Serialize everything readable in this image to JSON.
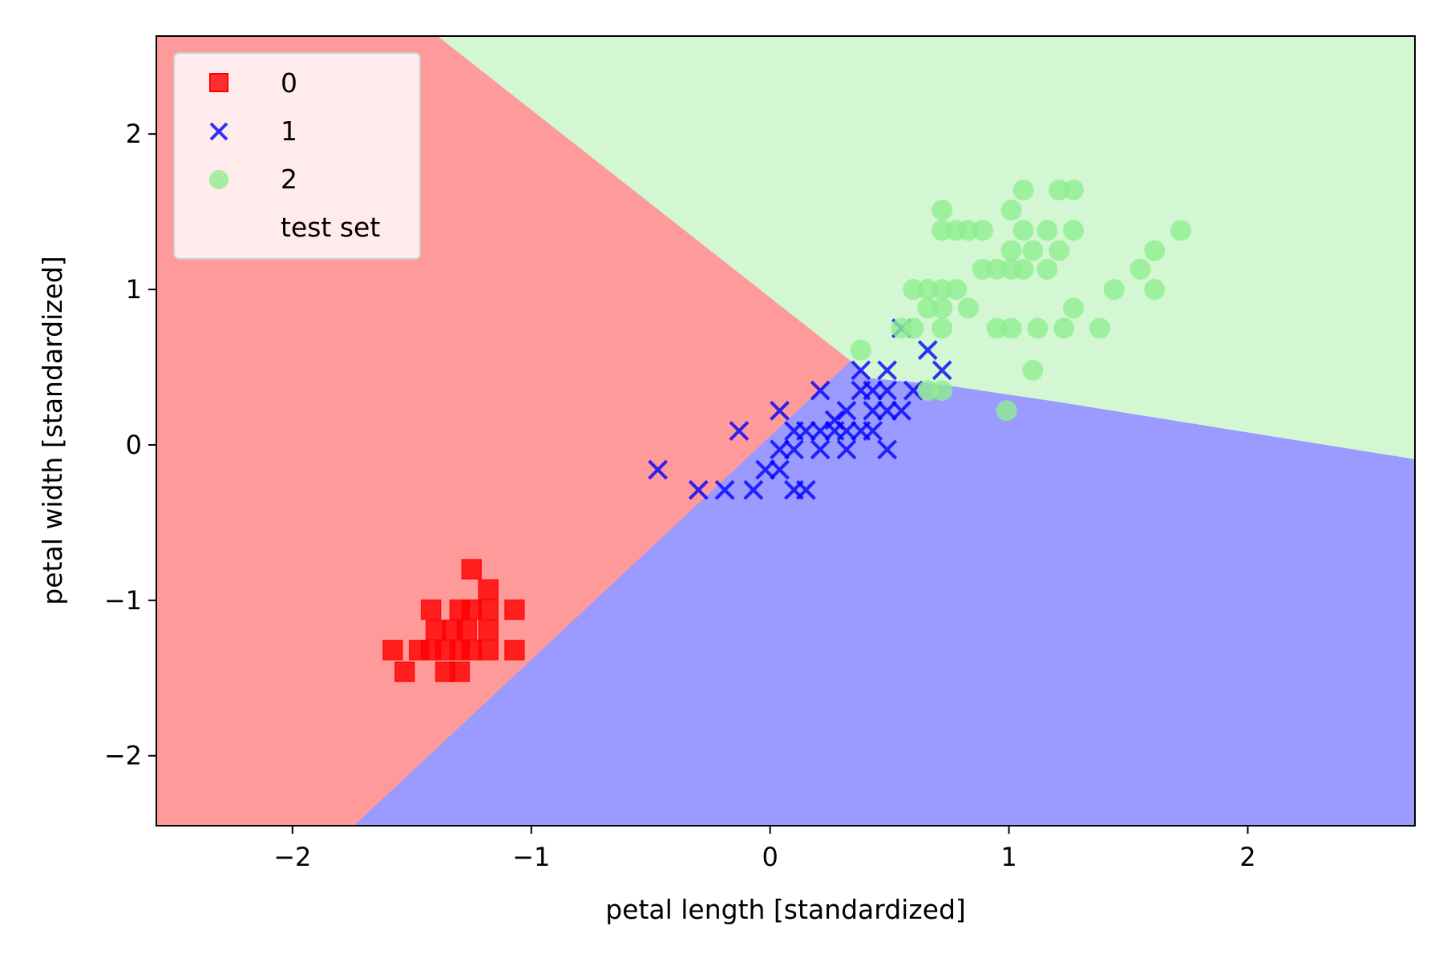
{
  "chart_data": {
    "type": "scatter",
    "title": "",
    "xlabel": "petal length [standardized]",
    "ylabel": "petal width [standardized]",
    "xlim": [
      -2.57,
      2.7
    ],
    "ylim": [
      -2.45,
      2.63
    ],
    "xticks": [
      -2,
      -1,
      0,
      1,
      2
    ],
    "yticks": [
      -2,
      -1,
      0,
      1,
      2
    ],
    "xtick_labels": [
      "−2",
      "−1",
      "0",
      "1",
      "2"
    ],
    "ytick_labels": [
      "−2",
      "−1",
      "0",
      "1",
      "2"
    ],
    "grid": false,
    "legend_position": "top-left",
    "legend": [
      {
        "label": "0",
        "marker": "square",
        "color": "#ff0000"
      },
      {
        "label": "1",
        "marker": "x",
        "color": "#0000ff"
      },
      {
        "label": "2",
        "marker": "circle",
        "color": "#90ee90"
      },
      {
        "label": "test set",
        "marker": "none",
        "color": "#000000"
      }
    ],
    "decision_regions": [
      {
        "class": "0",
        "color": "#ff9a9a",
        "polygon": [
          [
            -2.57,
            2.63
          ],
          [
            -1.39,
            2.63
          ],
          [
            0.34,
            0.54
          ],
          [
            -1.74,
            -2.45
          ],
          [
            -2.57,
            -2.45
          ]
        ]
      },
      {
        "class": "1",
        "color": "#9a9aff",
        "polygon": [
          [
            -1.74,
            -2.45
          ],
          [
            0.34,
            0.54
          ],
          [
            0.42,
            0.43
          ],
          [
            0.72,
            0.39
          ],
          [
            1.2,
            0.28
          ],
          [
            2.7,
            -0.09
          ],
          [
            2.7,
            -2.45
          ]
        ]
      },
      {
        "class": "2",
        "color": "#d2f7d2",
        "polygon": [
          [
            -1.39,
            2.63
          ],
          [
            2.7,
            2.63
          ],
          [
            2.7,
            -0.09
          ],
          [
            1.2,
            0.28
          ],
          [
            0.72,
            0.39
          ],
          [
            0.42,
            0.43
          ],
          [
            0.34,
            0.54
          ]
        ]
      }
    ],
    "series": [
      {
        "name": "0",
        "marker": "square",
        "color": "#ff0000",
        "points": [
          [
            -1.25,
            -0.8
          ],
          [
            -1.18,
            -0.93
          ],
          [
            -1.42,
            -1.06
          ],
          [
            -1.3,
            -1.06
          ],
          [
            -1.25,
            -1.06
          ],
          [
            -1.18,
            -1.06
          ],
          [
            -1.07,
            -1.06
          ],
          [
            -1.4,
            -1.19
          ],
          [
            -1.33,
            -1.19
          ],
          [
            -1.27,
            -1.19
          ],
          [
            -1.18,
            -1.19
          ],
          [
            -1.58,
            -1.32
          ],
          [
            -1.47,
            -1.32
          ],
          [
            -1.42,
            -1.32
          ],
          [
            -1.36,
            -1.32
          ],
          [
            -1.3,
            -1.32
          ],
          [
            -1.25,
            -1.32
          ],
          [
            -1.18,
            -1.32
          ],
          [
            -1.07,
            -1.32
          ],
          [
            -1.53,
            -1.46
          ],
          [
            -1.36,
            -1.46
          ],
          [
            -1.3,
            -1.46
          ]
        ]
      },
      {
        "name": "1",
        "marker": "x",
        "color": "#0000ff",
        "points": [
          [
            -0.47,
            -0.16
          ],
          [
            -0.3,
            -0.29
          ],
          [
            -0.19,
            -0.29
          ],
          [
            -0.07,
            -0.29
          ],
          [
            0.1,
            -0.29
          ],
          [
            0.15,
            -0.29
          ],
          [
            -0.13,
            0.09
          ],
          [
            0.04,
            0.22
          ],
          [
            0.21,
            0.35
          ],
          [
            -0.02,
            -0.16
          ],
          [
            0.04,
            -0.16
          ],
          [
            0.04,
            -0.03
          ],
          [
            0.1,
            -0.03
          ],
          [
            0.21,
            -0.03
          ],
          [
            0.32,
            -0.03
          ],
          [
            0.49,
            -0.03
          ],
          [
            0.1,
            0.09
          ],
          [
            0.15,
            0.09
          ],
          [
            0.21,
            0.09
          ],
          [
            0.27,
            0.09
          ],
          [
            0.32,
            0.09
          ],
          [
            0.38,
            0.09
          ],
          [
            0.43,
            0.09
          ],
          [
            0.27,
            0.16
          ],
          [
            0.32,
            0.22
          ],
          [
            0.43,
            0.22
          ],
          [
            0.49,
            0.22
          ],
          [
            0.55,
            0.22
          ],
          [
            0.38,
            0.35
          ],
          [
            0.43,
            0.35
          ],
          [
            0.49,
            0.35
          ],
          [
            0.6,
            0.35
          ],
          [
            0.38,
            0.48
          ],
          [
            0.49,
            0.48
          ],
          [
            0.72,
            0.48
          ],
          [
            0.66,
            0.61
          ],
          [
            0.55,
            0.75
          ]
        ]
      },
      {
        "name": "2",
        "marker": "circle",
        "color": "#90ee90",
        "points": [
          [
            0.38,
            0.61
          ],
          [
            0.55,
            0.75
          ],
          [
            0.6,
            0.75
          ],
          [
            0.72,
            0.75
          ],
          [
            0.95,
            0.75
          ],
          [
            1.01,
            0.75
          ],
          [
            1.12,
            0.75
          ],
          [
            1.23,
            0.75
          ],
          [
            1.38,
            0.75
          ],
          [
            0.66,
            0.88
          ],
          [
            0.72,
            0.88
          ],
          [
            0.83,
            0.88
          ],
          [
            1.27,
            0.88
          ],
          [
            0.6,
            1.0
          ],
          [
            0.66,
            1.0
          ],
          [
            0.72,
            1.0
          ],
          [
            0.78,
            1.0
          ],
          [
            1.44,
            1.0
          ],
          [
            1.61,
            1.0
          ],
          [
            0.89,
            1.13
          ],
          [
            0.95,
            1.13
          ],
          [
            1.01,
            1.13
          ],
          [
            1.06,
            1.13
          ],
          [
            1.16,
            1.13
          ],
          [
            1.55,
            1.13
          ],
          [
            1.01,
            1.25
          ],
          [
            1.1,
            1.25
          ],
          [
            1.21,
            1.25
          ],
          [
            1.61,
            1.25
          ],
          [
            0.72,
            1.38
          ],
          [
            0.78,
            1.38
          ],
          [
            0.83,
            1.38
          ],
          [
            0.89,
            1.38
          ],
          [
            1.06,
            1.38
          ],
          [
            1.16,
            1.38
          ],
          [
            1.27,
            1.38
          ],
          [
            1.72,
            1.38
          ],
          [
            0.72,
            1.51
          ],
          [
            1.01,
            1.51
          ],
          [
            1.06,
            1.64
          ],
          [
            1.21,
            1.64
          ],
          [
            1.27,
            1.64
          ],
          [
            0.66,
            0.35
          ],
          [
            0.72,
            0.35
          ],
          [
            0.99,
            0.22
          ],
          [
            1.1,
            0.48
          ]
        ]
      }
    ]
  }
}
